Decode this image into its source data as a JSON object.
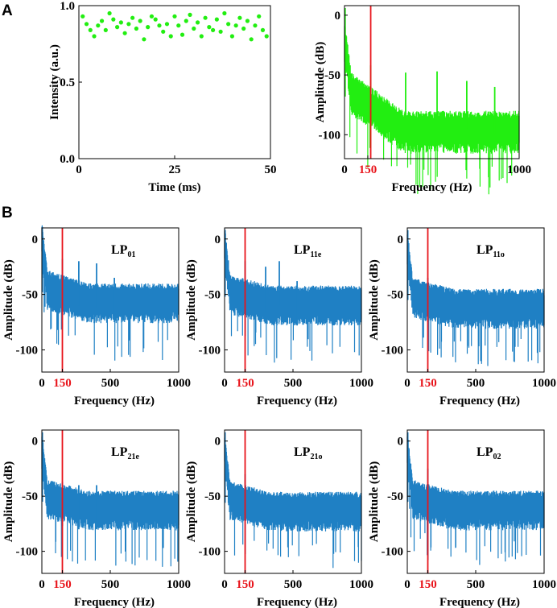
{
  "panel_labels": {
    "a": "A",
    "b": "B"
  },
  "colors": {
    "green": "#22ee11",
    "blue": "#1f80c4",
    "red": "#e8141b"
  },
  "chart_data": [
    {
      "id": "A-time",
      "type": "scatter",
      "xlabel": "Time (ms)",
      "ylabel": "Intensity (a.u.)",
      "xlim": [
        0,
        50
      ],
      "ylim": [
        0,
        1
      ],
      "xticks": [
        0,
        25,
        50
      ],
      "yticks": [
        "0.0",
        "0.5",
        "1.0"
      ],
      "color": "#22ee11",
      "x": [
        1,
        2,
        3,
        4,
        5,
        6,
        7,
        8,
        9,
        10,
        11,
        12,
        13,
        14,
        15,
        16,
        17,
        18,
        19,
        20,
        21,
        22,
        23,
        24,
        25,
        26,
        27,
        28,
        29,
        30,
        31,
        32,
        33,
        34,
        35,
        36,
        37,
        38,
        39,
        40,
        41,
        42,
        43,
        44,
        45,
        46,
        47,
        48,
        49
      ],
      "y": [
        0.93,
        0.88,
        0.84,
        0.8,
        0.87,
        0.9,
        0.84,
        0.95,
        0.91,
        0.86,
        0.89,
        0.82,
        0.88,
        0.92,
        0.85,
        0.9,
        0.78,
        0.86,
        0.93,
        0.91,
        0.87,
        0.83,
        0.88,
        0.8,
        0.93,
        0.87,
        0.81,
        0.9,
        0.94,
        0.85,
        0.89,
        0.8,
        0.92,
        0.86,
        0.84,
        0.91,
        0.83,
        0.95,
        0.88,
        0.8,
        0.87,
        0.92,
        0.85,
        0.9,
        0.78,
        0.87,
        0.93,
        0.84,
        0.8
      ]
    },
    {
      "id": "A-spectrum",
      "type": "line",
      "xlabel": "Frequency (Hz)",
      "ylabel": "Amplitude (dB)",
      "xlim": [
        0,
        1000
      ],
      "ylim": [
        -120,
        8
      ],
      "xticks": [
        "0",
        "150",
        "1000"
      ],
      "yticks": [
        "0",
        "-50",
        "-100"
      ],
      "color": "#22ee11",
      "marker_line_x": 150,
      "noise_floor_start": -58,
      "noise_floor_end": -90,
      "peaks": [
        {
          "x": 150,
          "y": -42
        },
        {
          "x": 350,
          "y": -48
        },
        {
          "x": 530,
          "y": -47
        },
        {
          "x": 700,
          "y": -55
        },
        {
          "x": 860,
          "y": -60
        }
      ]
    },
    {
      "id": "B-LP01",
      "type": "line",
      "mode_main": "LP",
      "mode_sub": "01",
      "xlabel": "Frequency (Hz)",
      "ylabel": "Amplitude (dB)",
      "xlim": [
        0,
        1000
      ],
      "ylim": [
        -120,
        10
      ],
      "xticks": [
        "0",
        "150",
        "500",
        "1000"
      ],
      "yticks": [
        "0",
        "-50",
        "-100"
      ],
      "color": "#1f80c4",
      "marker_line_x": 150,
      "noise_floor_start": -38,
      "noise_floor_end": -50,
      "peaks": [
        {
          "x": 150,
          "y": -18
        },
        {
          "x": 270,
          "y": -20
        },
        {
          "x": 400,
          "y": -22
        },
        {
          "x": 530,
          "y": -35
        }
      ]
    },
    {
      "id": "B-LP11e",
      "type": "line",
      "mode_main": "LP",
      "mode_sub": "11e",
      "xlabel": "Frequency (Hz)",
      "ylabel": "Amplitude (dB)",
      "xlim": [
        0,
        1000
      ],
      "ylim": [
        -120,
        10
      ],
      "xticks": [
        "0",
        "150",
        "500",
        "1000"
      ],
      "yticks": [
        "0",
        "-50",
        "-100"
      ],
      "color": "#1f80c4",
      "marker_line_x": 150,
      "noise_floor_start": -42,
      "noise_floor_end": -52,
      "peaks": [
        {
          "x": 150,
          "y": -20
        },
        {
          "x": 300,
          "y": -25
        },
        {
          "x": 400,
          "y": -20
        },
        {
          "x": 530,
          "y": -38
        }
      ]
    },
    {
      "id": "B-LP11o",
      "type": "line",
      "mode_main": "LP",
      "mode_sub": "11o",
      "xlabel": "Frequency (Hz)",
      "ylabel": "Amplitude (dB)",
      "xlim": [
        0,
        1000
      ],
      "ylim": [
        -120,
        10
      ],
      "xticks": [
        "0",
        "150",
        "500",
        "1000"
      ],
      "yticks": [
        "0",
        "-50",
        "-100"
      ],
      "color": "#1f80c4",
      "marker_line_x": 150,
      "noise_floor_start": -45,
      "noise_floor_end": -55,
      "peaks": [
        {
          "x": 150,
          "y": -35
        }
      ]
    },
    {
      "id": "B-LP21e",
      "type": "line",
      "mode_main": "LP",
      "mode_sub": "21e",
      "xlabel": "Frequency (Hz)",
      "ylabel": "Amplitude (dB)",
      "xlim": [
        0,
        1000
      ],
      "ylim": [
        -120,
        10
      ],
      "xticks": [
        "0",
        "150",
        "500",
        "1000"
      ],
      "yticks": [
        "0",
        "-50",
        "-100"
      ],
      "color": "#1f80c4",
      "marker_line_x": 150,
      "noise_floor_start": -45,
      "noise_floor_end": -55,
      "peaks": [
        {
          "x": 150,
          "y": -37
        },
        {
          "x": 270,
          "y": -40
        },
        {
          "x": 400,
          "y": -40
        }
      ]
    },
    {
      "id": "B-LP21o",
      "type": "line",
      "mode_main": "LP",
      "mode_sub": "21o",
      "xlabel": "Frequency (Hz)",
      "ylabel": "Amplitude (dB)",
      "xlim": [
        0,
        1000
      ],
      "ylim": [
        -120,
        10
      ],
      "xticks": [
        "0",
        "150",
        "500",
        "1000"
      ],
      "yticks": [
        "0",
        "-50",
        "-100"
      ],
      "color": "#1f80c4",
      "marker_line_x": 150,
      "noise_floor_start": -46,
      "noise_floor_end": -56,
      "peaks": [
        {
          "x": 150,
          "y": -30
        }
      ]
    },
    {
      "id": "B-LP02",
      "type": "line",
      "mode_main": "LP",
      "mode_sub": "02",
      "xlabel": "Frequency (Hz)",
      "ylabel": "Amplitude (dB)",
      "xlim": [
        0,
        1000
      ],
      "ylim": [
        -120,
        10
      ],
      "xticks": [
        "0",
        "150",
        "500",
        "1000"
      ],
      "yticks": [
        "0",
        "-50",
        "-100"
      ],
      "color": "#1f80c4",
      "marker_line_x": 150,
      "noise_floor_start": -45,
      "noise_floor_end": -55,
      "peaks": [
        {
          "x": 150,
          "y": -25
        }
      ]
    }
  ]
}
